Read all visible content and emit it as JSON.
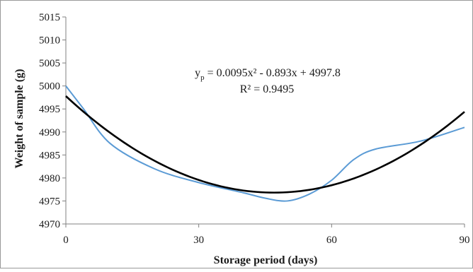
{
  "chart_data": {
    "type": "line",
    "title": "",
    "xlabel": "Storage period (days)",
    "ylabel": "Weight of sample (g)",
    "xlim": [
      0,
      90
    ],
    "ylim": [
      4970,
      5015
    ],
    "x_ticks": [
      "0",
      "30",
      "60",
      "90"
    ],
    "y_ticks": [
      "4970",
      "4975",
      "4980",
      "4985",
      "4990",
      "4995",
      "5000",
      "5005",
      "5010",
      "5015"
    ],
    "grid": false,
    "legend": "none",
    "series": [
      {
        "color": "#5b9bd5",
        "style": "smooth",
        "x": [
          0,
          4,
          10,
          20,
          30,
          40,
          45,
          50,
          55,
          60,
          65,
          70,
          80,
          90
        ],
        "y": [
          5000,
          4995,
          4987.5,
          4982,
          4979,
          4976.8,
          4975.6,
          4975,
          4976.5,
          4979.5,
          4984,
          4986.3,
          4988,
          4991
        ]
      },
      {
        "kind": "trendline",
        "color": "#000000",
        "equation": {
          "a": 0.0095,
          "b": -0.893,
          "c": 4997.8
        },
        "x_range": [
          0,
          90
        ]
      }
    ],
    "annotations": {
      "equation_prefix": "y",
      "equation_subscript": "p",
      "equation_rest": " = 0.0095x² - 0.893x + 4997.8",
      "r_squared": "R² = 0.9495"
    }
  }
}
